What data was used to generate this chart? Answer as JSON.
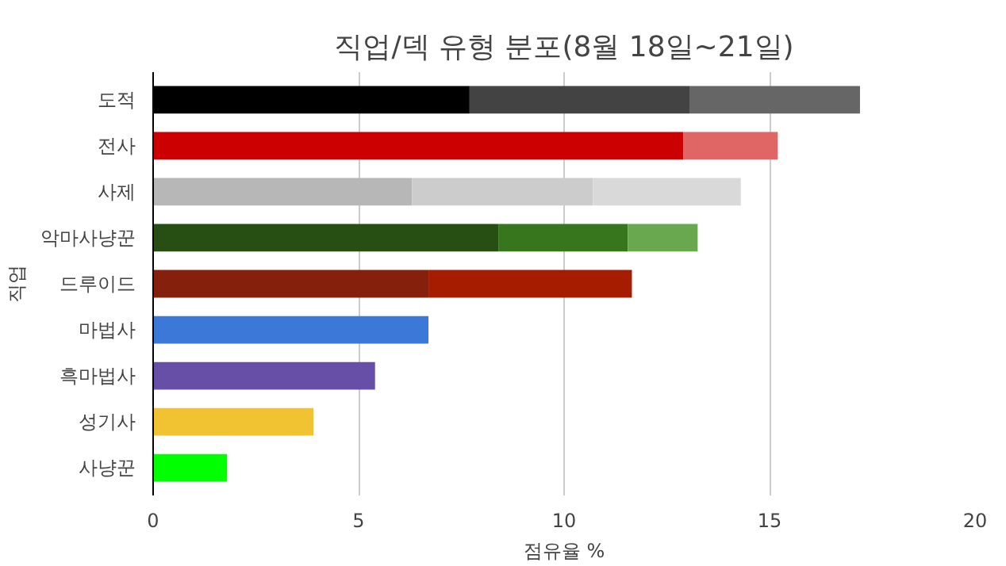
{
  "chart_data": {
    "type": "bar",
    "orientation": "horizontal",
    "stacked": true,
    "title": "직업/덱 유형 분포(8월 18일~21일)",
    "xlabel": "점유율 %",
    "ylabel": "직업",
    "categories": [
      "도적",
      "전사",
      "사제",
      "악마사냥꾼",
      "드루이드",
      "마법사",
      "흑마법사",
      "성기사",
      "사냥꾼"
    ],
    "series": [
      {
        "colors": [
          "#000000",
          "#cc0000",
          "#b7b7b7",
          "#274e13",
          "#85200c",
          "#3c78d8",
          "#674ea7",
          "#f1c232",
          "#00ff00"
        ],
        "values": [
          7.7,
          12.9,
          6.3,
          8.4,
          6.7,
          6.7,
          5.4,
          3.9,
          1.8
        ]
      },
      {
        "colors": [
          "#434343",
          "#e06666",
          "#cccccc",
          "#38761d",
          "#a61c00",
          null,
          null,
          null,
          null
        ],
        "values": [
          5.35,
          2.3,
          4.4,
          3.15,
          4.95,
          null,
          null,
          null,
          null
        ]
      },
      {
        "colors": [
          "#666666",
          null,
          "#d9d9d9",
          "#6aa84f",
          null,
          null,
          null,
          null,
          null
        ],
        "values": [
          4.15,
          null,
          3.6,
          1.7,
          null,
          null,
          null,
          null,
          null
        ]
      }
    ],
    "xlim": [
      0,
      20
    ],
    "xticks": [
      0,
      5,
      10,
      15,
      20
    ],
    "grid": "x"
  }
}
